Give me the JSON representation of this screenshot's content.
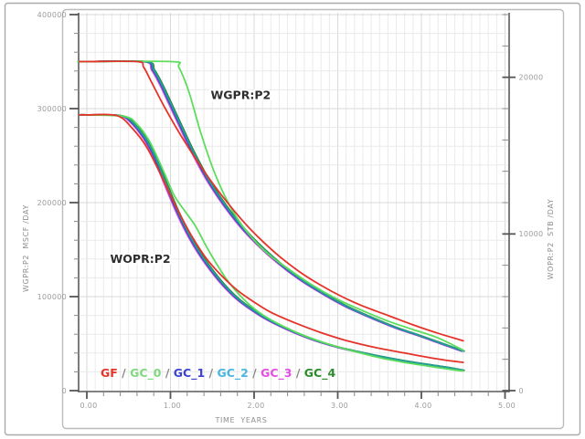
{
  "chart_data": {
    "type": "line",
    "title": "",
    "xlabel": "TIME  YEARS",
    "ylabel_left": "WGPR:P2  MSCF /DAY",
    "ylabel_right": "WOPR:P2  STB /DAY",
    "grid": "minor-and-major",
    "legend_position": "bottom-left-inside",
    "x_axis": {
      "min": -0.1,
      "max": 5.04,
      "major_ticks": [
        {
          "v": 0,
          "label": "0.00"
        },
        {
          "v": 1,
          "label": "1.00"
        },
        {
          "v": 2,
          "label": "2.00"
        },
        {
          "v": 3,
          "label": "3.00"
        },
        {
          "v": 4,
          "label": "4.00"
        },
        {
          "v": 5,
          "label": "5.00"
        }
      ],
      "minor_step": 0.2,
      "grid_step": 0.1
    },
    "left_axis": {
      "min": 0,
      "max": 400000,
      "major_ticks": [
        {
          "v": 0,
          "label": "0"
        },
        {
          "v": 100000,
          "label": "100000"
        },
        {
          "v": 200000,
          "label": "200000"
        },
        {
          "v": 300000,
          "label": "300000"
        },
        {
          "v": 400000,
          "label": "400000"
        }
      ],
      "minor_step": 20000
    },
    "right_axis": {
      "min": 0,
      "max": 24000,
      "major_ticks": [
        {
          "v": 0,
          "label": "0"
        },
        {
          "v": 10000,
          "label": "10000"
        },
        {
          "v": 20000,
          "label": "20000"
        }
      ],
      "minor_step": 2000
    },
    "annotations": [
      {
        "text": "WGPR:P2",
        "t": 1.84,
        "value_left": 314000
      },
      {
        "text": "WOPR:P2",
        "t": 0.64,
        "value_left": 140000
      }
    ],
    "bundles": {
      "wgpr_gc": [
        [
          0,
          350000
        ],
        [
          0.7,
          350000
        ],
        [
          0.8,
          341000
        ],
        [
          0.9,
          325000
        ],
        [
          1.0,
          306000
        ],
        [
          1.12,
          283000
        ],
        [
          1.28,
          253000
        ],
        [
          1.45,
          225000
        ],
        [
          1.65,
          198000
        ],
        [
          1.85,
          175000
        ],
        [
          2.05,
          156000
        ],
        [
          2.3,
          136000
        ],
        [
          2.55,
          119000
        ],
        [
          2.8,
          105000
        ],
        [
          3.1,
          90000
        ],
        [
          3.4,
          78000
        ],
        [
          3.7,
          67000
        ],
        [
          4.0,
          58000
        ],
        [
          4.25,
          50000
        ],
        [
          4.5,
          42000
        ]
      ],
      "wopr_gc": [
        [
          0,
          17600
        ],
        [
          0.4,
          17550
        ],
        [
          0.55,
          17100
        ],
        [
          0.7,
          16100
        ],
        [
          0.82,
          14900
        ],
        [
          0.95,
          13200
        ],
        [
          1.1,
          11300
        ],
        [
          1.25,
          9700
        ],
        [
          1.4,
          8400
        ],
        [
          1.6,
          7000
        ],
        [
          1.8,
          5900
        ],
        [
          2.0,
          5100
        ],
        [
          2.2,
          4450
        ],
        [
          2.5,
          3700
        ],
        [
          2.8,
          3100
        ],
        [
          3.1,
          2650
        ],
        [
          3.45,
          2250
        ],
        [
          3.8,
          1900
        ],
        [
          4.1,
          1650
        ],
        [
          4.35,
          1450
        ],
        [
          4.5,
          1300
        ]
      ]
    },
    "series": [
      {
        "name": "GC_3",
        "quantity": "WGPR:P2",
        "axis": "left",
        "color": "#d94fd9",
        "points_key": "wgpr_gc",
        "dt": -0.025
      },
      {
        "name": "GC_1",
        "quantity": "WGPR:P2",
        "axis": "left",
        "color": "#3b43d0",
        "points_key": "wgpr_gc",
        "dt": -0.012
      },
      {
        "name": "GC_4",
        "quantity": "WGPR:P2",
        "axis": "left",
        "color": "#2d7d2d",
        "points_key": "wgpr_gc",
        "dt": 0.01
      },
      {
        "name": "GC_2",
        "quantity": "WGPR:P2",
        "axis": "left",
        "color": "#239f98",
        "points_key": "wgpr_gc",
        "dt": 0
      },
      {
        "name": "GC_0",
        "quantity": "WGPR:P2",
        "axis": "left",
        "color": "#5ddd5d",
        "dt": 0,
        "points": [
          [
            0,
            350000
          ],
          [
            1.02,
            350000
          ],
          [
            1.1,
            344000
          ],
          [
            1.22,
            318000
          ],
          [
            1.35,
            278000
          ],
          [
            1.5,
            238000
          ],
          [
            1.65,
            207000
          ],
          [
            1.8,
            183000
          ],
          [
            2.0,
            160000
          ],
          [
            2.2,
            143000
          ],
          [
            2.45,
            127000
          ],
          [
            2.7,
            112000
          ],
          [
            3.0,
            97000
          ],
          [
            3.3,
            85000
          ],
          [
            3.6,
            74000
          ],
          [
            3.9,
            65000
          ],
          [
            4.2,
            56000
          ],
          [
            4.5,
            43000
          ]
        ]
      },
      {
        "name": "GF",
        "quantity": "WGPR:P2",
        "axis": "left",
        "color": "#e63329",
        "dt": 0,
        "points": [
          [
            0,
            350000
          ],
          [
            0.6,
            350000
          ],
          [
            0.68,
            344000
          ],
          [
            0.78,
            327000
          ],
          [
            0.92,
            303000
          ],
          [
            1.1,
            275000
          ],
          [
            1.3,
            247000
          ],
          [
            1.5,
            221000
          ],
          [
            1.7,
            198000
          ],
          [
            1.9,
            177000
          ],
          [
            2.1,
            159000
          ],
          [
            2.3,
            143000
          ],
          [
            2.55,
            126000
          ],
          [
            2.8,
            112000
          ],
          [
            3.05,
            100000
          ],
          [
            3.3,
            90000
          ],
          [
            3.6,
            80000
          ],
          [
            3.9,
            70000
          ],
          [
            4.2,
            61000
          ],
          [
            4.5,
            53000
          ]
        ]
      },
      {
        "name": "GC_3",
        "quantity": "WOPR:P2",
        "axis": "right",
        "color": "#d94fd9",
        "points_key": "wopr_gc",
        "dt": -0.025
      },
      {
        "name": "GC_1",
        "quantity": "WOPR:P2",
        "axis": "right",
        "color": "#3b43d0",
        "points_key": "wopr_gc",
        "dt": -0.012
      },
      {
        "name": "GC_4",
        "quantity": "WOPR:P2",
        "axis": "right",
        "color": "#2d7d2d",
        "points_key": "wopr_gc",
        "dt": 0.01
      },
      {
        "name": "GC_2",
        "quantity": "WOPR:P2",
        "axis": "right",
        "color": "#239f98",
        "points_key": "wopr_gc",
        "dt": 0
      },
      {
        "name": "GC_0",
        "quantity": "WOPR:P2",
        "axis": "right",
        "color": "#5ddd5d",
        "dt": 0,
        "points": [
          [
            0,
            17600
          ],
          [
            0.45,
            17500
          ],
          [
            0.6,
            17000
          ],
          [
            0.74,
            16000
          ],
          [
            0.85,
            14800
          ],
          [
            0.95,
            13600
          ],
          [
            1.05,
            12400
          ],
          [
            1.18,
            11400
          ],
          [
            1.3,
            10500
          ],
          [
            1.42,
            9300
          ],
          [
            1.55,
            8100
          ],
          [
            1.7,
            6900
          ],
          [
            1.9,
            5700
          ],
          [
            2.1,
            4850
          ],
          [
            2.35,
            4100
          ],
          [
            2.6,
            3500
          ],
          [
            2.9,
            2950
          ],
          [
            3.2,
            2500
          ],
          [
            3.5,
            2100
          ],
          [
            3.8,
            1800
          ],
          [
            4.1,
            1550
          ],
          [
            4.35,
            1350
          ],
          [
            4.5,
            1250
          ]
        ]
      },
      {
        "name": "GF",
        "quantity": "WOPR:P2",
        "axis": "right",
        "color": "#e63329",
        "dt": 0,
        "points": [
          [
            0,
            17600
          ],
          [
            0.36,
            17550
          ],
          [
            0.55,
            16700
          ],
          [
            0.72,
            15500
          ],
          [
            0.9,
            13600
          ],
          [
            1.08,
            11600
          ],
          [
            1.25,
            9900
          ],
          [
            1.42,
            8500
          ],
          [
            1.6,
            7400
          ],
          [
            1.8,
            6400
          ],
          [
            2.0,
            5650
          ],
          [
            2.2,
            5000
          ],
          [
            2.5,
            4300
          ],
          [
            2.8,
            3700
          ],
          [
            3.1,
            3200
          ],
          [
            3.45,
            2750
          ],
          [
            3.8,
            2400
          ],
          [
            4.1,
            2100
          ],
          [
            4.35,
            1900
          ],
          [
            4.5,
            1800
          ]
        ]
      }
    ]
  },
  "legend": {
    "separator": " / ",
    "items": [
      {
        "label": "GF",
        "color": "#e63329"
      },
      {
        "label": "GC_0",
        "color": "#7fd97f"
      },
      {
        "label": "GC_1",
        "color": "#3b43d0"
      },
      {
        "label": "GC_2",
        "color": "#4ab5e3"
      },
      {
        "label": "GC_3",
        "color": "#e24fe2"
      },
      {
        "label": "GC_4",
        "color": "#2d8b2d"
      }
    ]
  }
}
